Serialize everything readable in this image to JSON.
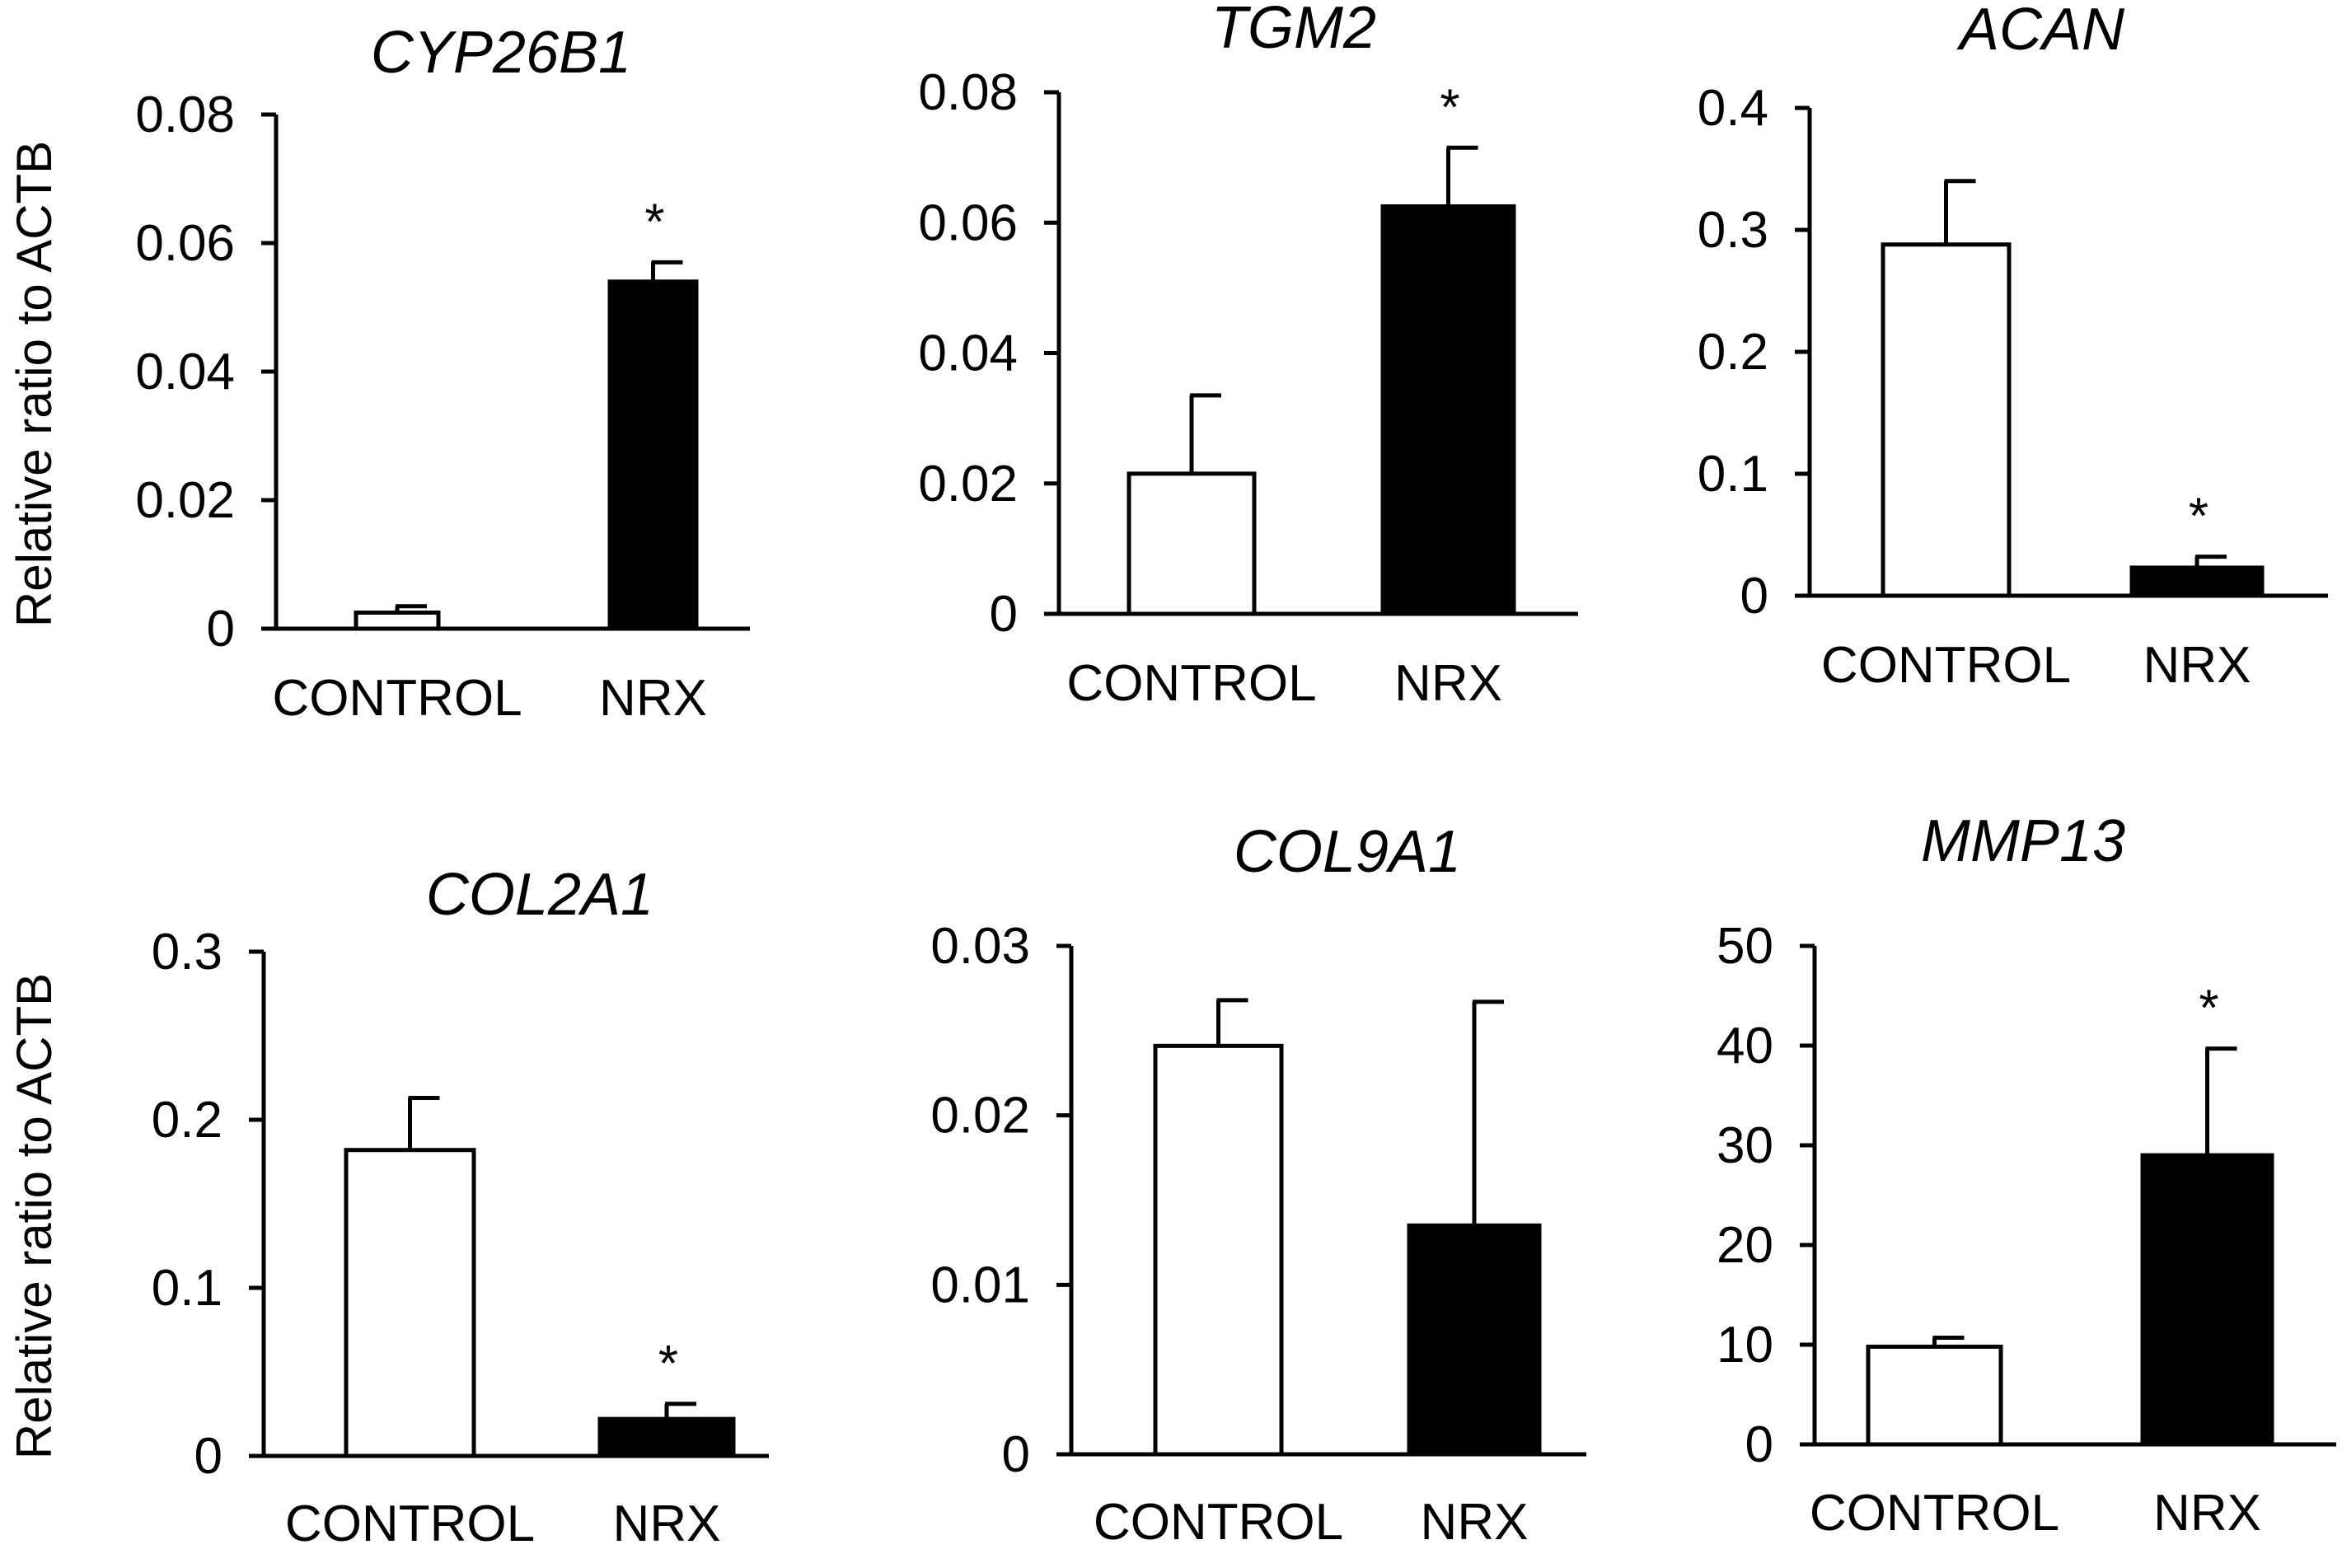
{
  "chart_data": [
    {
      "type": "bar",
      "title": "CYP26B1",
      "ylabel": "Relative ratio to ACTB",
      "categories": [
        "CONTROL",
        "NRX"
      ],
      "values": [
        0.0025,
        0.054
      ],
      "errors": [
        0.001,
        0.003
      ],
      "significance": [
        "",
        "*"
      ],
      "fills": [
        "#ffffff",
        "#000000"
      ],
      "ylim": [
        0,
        0.08
      ],
      "yticks": [
        0,
        0.02,
        0.04,
        0.06,
        0.08
      ],
      "ytick_labels": [
        "0",
        "0.02",
        "0.04",
        "0.06",
        "0.08"
      ]
    },
    {
      "type": "bar",
      "title": "TGM2",
      "ylabel": "",
      "categories": [
        "CONTROL",
        "NRX"
      ],
      "values": [
        0.0215,
        0.0625
      ],
      "errors": [
        0.012,
        0.009
      ],
      "significance": [
        "",
        "*"
      ],
      "fills": [
        "#ffffff",
        "#000000"
      ],
      "ylim": [
        0,
        0.08
      ],
      "yticks": [
        0,
        0.02,
        0.04,
        0.06,
        0.08
      ],
      "ytick_labels": [
        "0",
        "0.02",
        "0.04",
        "0.06",
        "0.08"
      ]
    },
    {
      "type": "bar",
      "title": "ACAN",
      "ylabel": "",
      "categories": [
        "CONTROL",
        "NRX"
      ],
      "values": [
        0.288,
        0.023
      ],
      "errors": [
        0.052,
        0.009
      ],
      "significance": [
        "",
        "*"
      ],
      "fills": [
        "#ffffff",
        "#000000"
      ],
      "ylim": [
        0,
        0.4
      ],
      "yticks": [
        0,
        0.1,
        0.2,
        0.3,
        0.4
      ],
      "ytick_labels": [
        "0",
        "0.1",
        "0.2",
        "0.3",
        "0.4"
      ]
    },
    {
      "type": "bar",
      "title": "COL2A1",
      "ylabel": "Relative ratio to ACTB",
      "categories": [
        "CONTROL",
        "NRX"
      ],
      "values": [
        0.182,
        0.022
      ],
      "errors": [
        0.031,
        0.009
      ],
      "significance": [
        "",
        "*"
      ],
      "fills": [
        "#ffffff",
        "#000000"
      ],
      "ylim": [
        0,
        0.3
      ],
      "yticks": [
        0,
        0.1,
        0.2,
        0.3
      ],
      "ytick_labels": [
        "0",
        "0.1",
        "0.2",
        "0.3"
      ]
    },
    {
      "type": "bar",
      "title": "COL9A1",
      "ylabel": "",
      "categories": [
        "CONTROL",
        "NRX"
      ],
      "values": [
        0.0241,
        0.0135
      ],
      "errors": [
        0.0027,
        0.0132
      ],
      "significance": [
        "",
        ""
      ],
      "fills": [
        "#ffffff",
        "#000000"
      ],
      "ylim": [
        0,
        0.03
      ],
      "yticks": [
        0,
        0.01,
        0.02,
        0.03
      ],
      "ytick_labels": [
        "0",
        "0.01",
        "0.02",
        "0.03"
      ]
    },
    {
      "type": "bar",
      "title": "MMP13",
      "ylabel": "",
      "categories": [
        "CONTROL",
        "NRX"
      ],
      "values": [
        9.8,
        29.0
      ],
      "errors": [
        0.9,
        10.7
      ],
      "significance": [
        "",
        "*"
      ],
      "fills": [
        "#ffffff",
        "#000000"
      ],
      "ylim": [
        0,
        50
      ],
      "yticks": [
        0,
        10,
        20,
        30,
        40,
        50
      ],
      "ytick_labels": [
        "0",
        "10",
        "20",
        "30",
        "40",
        "50"
      ]
    }
  ]
}
